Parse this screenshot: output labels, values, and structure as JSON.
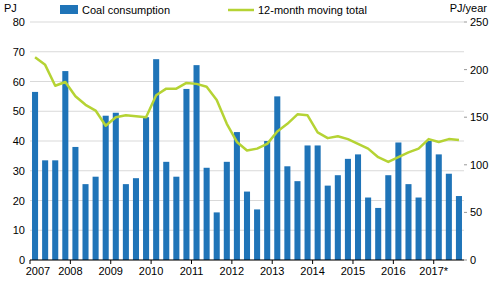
{
  "chart_data": {
    "type": "bar",
    "y_label": "PJ",
    "y2_label": "PJ/year",
    "categories": [
      "2007",
      null,
      null,
      null,
      "2008",
      null,
      null,
      null,
      "2009",
      null,
      null,
      null,
      "2010",
      null,
      null,
      null,
      "2011",
      null,
      null,
      null,
      "2012",
      null,
      null,
      null,
      "2013",
      null,
      null,
      null,
      "2014",
      null,
      null,
      null,
      "2015",
      null,
      null,
      null,
      "2016",
      null,
      null,
      null,
      "2017*",
      null,
      null
    ],
    "series": [
      {
        "name": "Coal consumption",
        "type": "bar",
        "color": "#1f74b8",
        "values": [
          56.5,
          33.5,
          33.5,
          63.5,
          38,
          25.5,
          28,
          48.5,
          49.5,
          25.5,
          27.5,
          48,
          67.5,
          33,
          28,
          57.5,
          65.5,
          31,
          16,
          33,
          43,
          23,
          17,
          40,
          55,
          31.5,
          26.5,
          38.5,
          38.5,
          25,
          28.5,
          34,
          35.5,
          21,
          17.5,
          28.5,
          39.5,
          25.5,
          21,
          40,
          35.5,
          29,
          21.5
        ]
      },
      {
        "name": "12-month moving total",
        "type": "line",
        "axis": "y2",
        "color": "#b5d334",
        "values": [
          213,
          205,
          183,
          187,
          172,
          163,
          157,
          141,
          150,
          152,
          151,
          150,
          173,
          180,
          180,
          186,
          185,
          182,
          168,
          143,
          124,
          115,
          117,
          122,
          135,
          143,
          153,
          152,
          134,
          128,
          130,
          127,
          122,
          117,
          108,
          103,
          108,
          113,
          117,
          127,
          124,
          127,
          126
        ]
      }
    ],
    "ylim": [
      0,
      80
    ],
    "yticks": [
      0,
      10,
      20,
      30,
      40,
      50,
      60,
      70,
      80
    ],
    "y2lim": [
      0,
      250
    ],
    "y2ticks": [
      0,
      50,
      100,
      150,
      200,
      250
    ],
    "grid": true,
    "legend": "top"
  }
}
